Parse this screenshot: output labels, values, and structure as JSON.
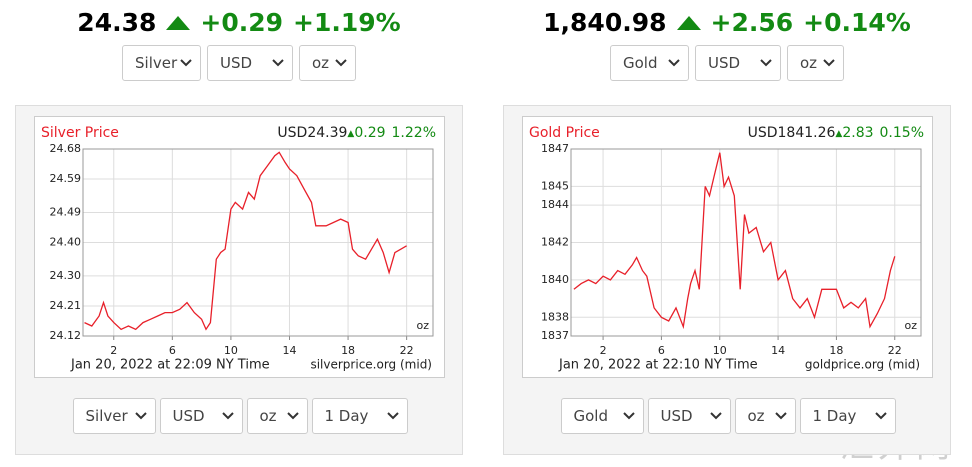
{
  "panels": [
    {
      "price": "24.38",
      "change": "+0.29",
      "change_pct": "+1.19%",
      "selects_top": [
        "Silver",
        "USD",
        "oz"
      ],
      "chart": {
        "type": "line",
        "title": "Silver Price",
        "quote_currency": "USD",
        "quote_price": "24.39",
        "quote_change": "0.29",
        "quote_pct": "1.22%",
        "unit": "oz",
        "footer": "Jan 20, 2022 at 22:09 NY Time",
        "source": "silverprice.org (mid)",
        "grid": true,
        "xlim": [
          -0.1,
          23.8
        ],
        "xticks": [
          2,
          6,
          10,
          14,
          18,
          22
        ],
        "ylim": [
          24.12,
          24.68
        ],
        "yticks": [
          24.12,
          24.21,
          {
            "value": 24.3,
            "label": "24.30"
          },
          {
            "value": 24.4,
            "label": "24.40"
          },
          24.49,
          24.59,
          24.68
        ],
        "x": [
          0,
          0.5,
          1,
          1.3,
          1.6,
          2,
          2.5,
          3,
          3.5,
          4,
          4.5,
          5,
          5.5,
          6,
          6.5,
          7,
          7.5,
          8,
          8.3,
          8.6,
          9,
          9.3,
          9.6,
          10,
          10.3,
          10.8,
          11.2,
          11.6,
          12,
          12.5,
          13,
          13.3,
          13.7,
          14,
          14.5,
          15,
          15.5,
          15.8,
          16.5,
          17,
          17.5,
          18,
          18.3,
          18.7,
          19.2,
          19.6,
          20,
          20.4,
          20.8,
          21.2,
          21.6,
          22
        ],
        "series": [
          {
            "color": "#e8202a",
            "values": [
              24.16,
              24.15,
              24.18,
              24.22,
              24.18,
              24.16,
              24.14,
              24.15,
              24.14,
              24.16,
              24.17,
              24.18,
              24.19,
              24.19,
              24.2,
              24.22,
              24.19,
              24.17,
              24.14,
              24.16,
              24.35,
              24.37,
              24.38,
              24.5,
              24.52,
              24.5,
              24.55,
              24.53,
              24.6,
              24.63,
              24.66,
              24.67,
              24.64,
              24.62,
              24.6,
              24.56,
              24.52,
              24.45,
              24.45,
              24.46,
              24.47,
              24.46,
              24.38,
              24.36,
              24.35,
              24.38,
              24.41,
              24.37,
              24.31,
              24.37,
              24.38,
              24.39
            ]
          }
        ]
      },
      "selects_bottom": [
        "Silver",
        "USD",
        "oz",
        "1 Day"
      ]
    },
    {
      "price": "1,840.98",
      "change": "+2.56",
      "change_pct": "+0.14%",
      "selects_top": [
        "Gold",
        "USD",
        "oz"
      ],
      "chart": {
        "type": "line",
        "title": "Gold Price",
        "quote_currency": "USD",
        "quote_price": "1841.26",
        "quote_change": "2.83",
        "quote_pct": "0.15%",
        "unit": "oz",
        "footer": "Jan 20, 2022 at 22:10 NY Time",
        "source": "goldprice.org (mid)",
        "grid": true,
        "xlim": [
          -0.2,
          23.8
        ],
        "xticks": [
          2,
          6,
          10,
          14,
          18,
          22
        ],
        "ylim": [
          1837,
          1847
        ],
        "yticks": [
          1837,
          1838,
          1840,
          1842,
          1844,
          1845,
          1847
        ],
        "x": [
          0,
          0.5,
          1,
          1.5,
          2,
          2.5,
          3,
          3.5,
          4,
          4.3,
          4.7,
          5,
          5.5,
          6,
          6.5,
          7,
          7.5,
          7.8,
          8,
          8.3,
          8.6,
          9,
          9.3,
          9.6,
          10,
          10.3,
          10.6,
          11,
          11.4,
          11.7,
          12,
          12.5,
          13,
          13.5,
          14,
          14.5,
          15,
          15.5,
          16,
          16.5,
          17,
          17.5,
          18,
          18.5,
          19,
          19.5,
          20,
          20.3,
          20.8,
          21.3,
          21.7,
          22
        ],
        "series": [
          {
            "color": "#e8202a",
            "values": [
              1839.5,
              1839.8,
              1840,
              1839.8,
              1840.2,
              1840,
              1840.5,
              1840.3,
              1840.8,
              1841.2,
              1840.5,
              1840.2,
              1838.5,
              1838,
              1837.8,
              1838.5,
              1837.5,
              1839,
              1839.8,
              1840.5,
              1839.5,
              1845,
              1844.5,
              1845.5,
              1846.8,
              1845,
              1845.5,
              1844.5,
              1839.5,
              1843.5,
              1842.5,
              1842.8,
              1841.5,
              1842,
              1840,
              1840.5,
              1839,
              1838.5,
              1839,
              1838,
              1839.5,
              1839.5,
              1839.5,
              1838.5,
              1838.8,
              1838.5,
              1839,
              1837.5,
              1838.2,
              1839,
              1840.5,
              1841.26
            ]
          }
        ]
      },
      "selects_bottom": [
        "Gold",
        "USD",
        "oz",
        "1 Day"
      ]
    }
  ],
  "watermark": "汇外网"
}
